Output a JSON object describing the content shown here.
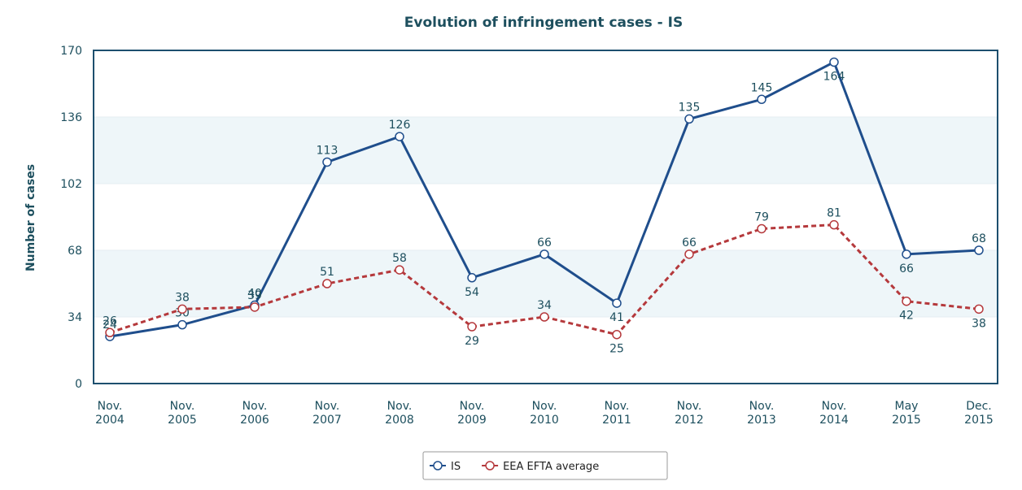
{
  "chart_data": {
    "type": "line",
    "title": "Evolution of infringement cases - IS",
    "y_label": "Number of cases",
    "categories": [
      "Nov. 2004",
      "Nov. 2005",
      "Nov. 2006",
      "Nov. 2007",
      "Nov. 2008",
      "Nov. 2009",
      "Nov. 2010",
      "Nov. 2011",
      "Nov. 2012",
      "Nov. 2013",
      "Nov. 2014",
      "May 2015",
      "Dec. 2015"
    ],
    "series": [
      {
        "name": "IS",
        "color": "#1f4e8c",
        "values": [
          24,
          30,
          40,
          113,
          126,
          54,
          66,
          41,
          135,
          145,
          164,
          66,
          68
        ]
      },
      {
        "name": "EEA EFTA average",
        "color": "#b5393c",
        "values": [
          26,
          38,
          39,
          51,
          58,
          29,
          34,
          25,
          66,
          79,
          81,
          42,
          38
        ]
      }
    ],
    "ylim": [
      0,
      170
    ],
    "yticks": [
      0,
      34,
      68,
      102,
      136,
      170
    ],
    "legend": "bottom"
  }
}
